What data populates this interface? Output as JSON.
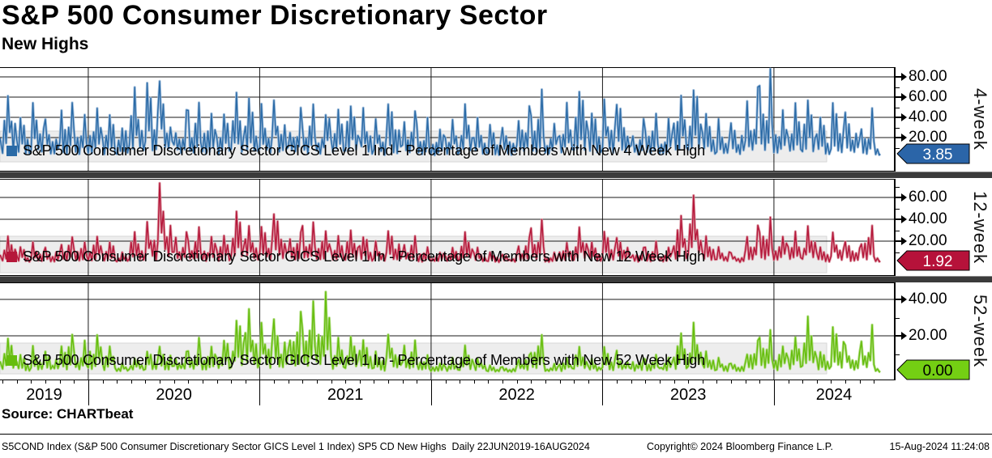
{
  "header": {
    "title": "S&P 500 Consumer Discretionary Sector",
    "subtitle": "New Highs"
  },
  "x_axis": {
    "years": [
      "2019",
      "2020",
      "2021",
      "2022",
      "2023",
      "2024"
    ],
    "range_start": 2019.485,
    "range_end": 2024.62
  },
  "source_line": "Source: CHARTbeat",
  "footer": {
    "left": "S5COND Index (S&P 500 Consumer Discretionary Sector GICS Level 1 Index) SP5 CD New Highs  Daily 22JUN2019-16AUG2024",
    "center": "Copyright© 2024 Bloomberg Finance L.P.",
    "right": "15-Aug-2024 11:24:08"
  },
  "chart_data": [
    {
      "type": "line",
      "panel": "4-week",
      "legend": "S&P 500 Consumer Discretionary Sector GICS Level 1 Ind - Percentage of Members with New 4 Week High",
      "color": "#2a6aa6",
      "color_light": "#9ab9d9",
      "badge": {
        "value": "3.85",
        "bg": "#2b65a8",
        "fg": "#ffffff"
      },
      "yticks": [
        20,
        40,
        60,
        80
      ],
      "ylim": [
        0,
        90
      ],
      "x_start": 2019.5,
      "x_end": 2024.62,
      "x_unit": "year",
      "monthly_peaks": [
        65,
        40,
        55,
        40,
        55,
        45,
        50,
        45,
        30,
        70,
        75,
        80,
        50,
        55,
        45,
        45,
        65,
        60,
        55,
        60,
        50,
        55,
        45,
        50,
        55,
        50,
        40,
        55,
        50,
        40,
        30,
        40,
        55,
        40,
        35,
        30,
        55,
        70,
        35,
        55,
        70,
        45,
        60,
        55,
        40,
        45,
        40,
        65,
        70,
        45,
        40,
        35,
        70,
        88,
        50,
        55,
        60,
        40,
        55,
        45,
        50,
        25
      ],
      "last_value": 3.85
    },
    {
      "type": "line",
      "panel": "12-week",
      "legend": "S&P 500 Consumer Discretionary Sector GICS Level 1 In - Percentage of Members with New 12 Week High",
      "color": "#b5173a",
      "color_light": "#d9909c",
      "badge": {
        "value": "1.92",
        "bg": "#b6123a",
        "fg": "#ffffff"
      },
      "yticks": [
        20,
        40,
        60
      ],
      "ylim": [
        0,
        77
      ],
      "x_start": 2019.5,
      "x_end": 2024.62,
      "x_unit": "year",
      "monthly_peaks": [
        25,
        15,
        20,
        15,
        25,
        20,
        25,
        20,
        10,
        30,
        40,
        75,
        30,
        35,
        25,
        25,
        48,
        35,
        35,
        45,
        30,
        40,
        30,
        25,
        30,
        25,
        20,
        30,
        25,
        15,
        10,
        15,
        30,
        15,
        10,
        8,
        25,
        40,
        10,
        20,
        35,
        20,
        30,
        25,
        15,
        20,
        15,
        45,
        62,
        25,
        15,
        10,
        35,
        45,
        25,
        30,
        35,
        15,
        30,
        20,
        35,
        10
      ],
      "last_value": 1.92
    },
    {
      "type": "line",
      "panel": "52-week",
      "legend": "S&P 500 Consumer Discretionary Sector GICS Level 1 In - Percentage of Members with New 52 Week High",
      "color": "#66bd0d",
      "color_light": "#abdc7a",
      "badge": {
        "value": "0.00",
        "bg": "#74cf13",
        "fg": "#000000"
      },
      "yticks": [
        20,
        40
      ],
      "ylim": [
        0,
        49
      ],
      "x_start": 2019.5,
      "x_end": 2024.62,
      "x_unit": "year",
      "monthly_peaks": [
        20,
        10,
        15,
        12,
        22,
        18,
        22,
        15,
        5,
        8,
        12,
        15,
        12,
        20,
        15,
        18,
        30,
        35,
        28,
        30,
        35,
        40,
        46,
        20,
        20,
        18,
        12,
        22,
        18,
        10,
        5,
        8,
        15,
        8,
        4,
        3,
        10,
        22,
        5,
        8,
        15,
        8,
        15,
        12,
        8,
        10,
        8,
        22,
        28,
        12,
        8,
        5,
        18,
        25,
        15,
        20,
        32,
        12,
        25,
        15,
        28,
        5
      ],
      "last_value": 0.0
    }
  ]
}
